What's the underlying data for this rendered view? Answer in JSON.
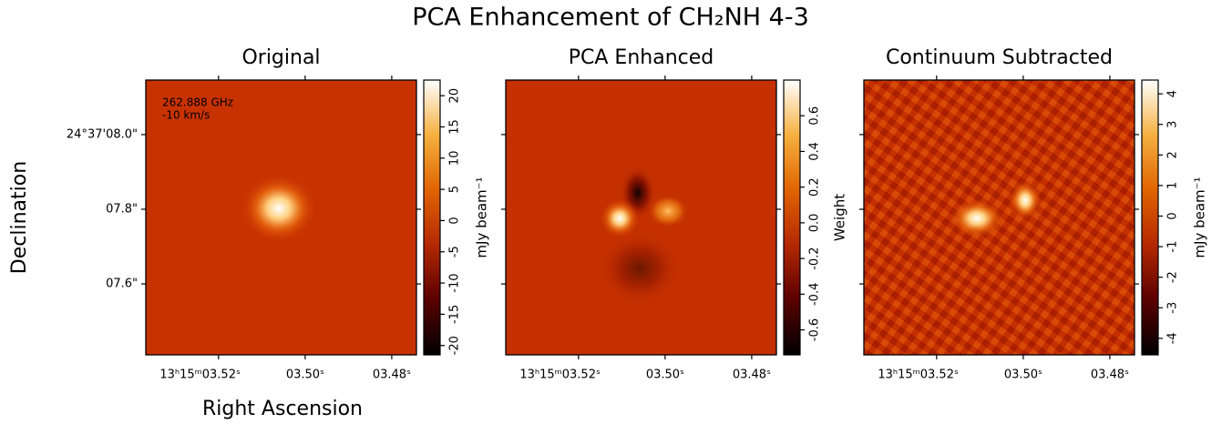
{
  "chart_data": {
    "type": "image",
    "title": "PCA Enhancement of CH₂NH 4-3",
    "xlabel": "Right Ascension",
    "ylabel": "Declination",
    "annotation": [
      "262.888 GHz",
      "-10 km/s"
    ],
    "xlim": [
      3.5368,
      3.4743
    ],
    "xticks": [
      {
        "value": 3.52,
        "label": "13ʰ15ᵐ03.52ˢ"
      },
      {
        "value": 3.5,
        "label": "03.50ˢ"
      },
      {
        "value": 3.48,
        "label": "03.48ˢ"
      }
    ],
    "ylim": [
      7.41,
      8.146
    ],
    "yticks": [
      {
        "value": 8.0,
        "label": "24°37'08.0\""
      },
      {
        "value": 7.8,
        "label": "07.8\""
      },
      {
        "value": 7.6,
        "label": "07.6\""
      }
    ],
    "colormap": [
      "#000000",
      "#5a0000",
      "#b42800",
      "#e06400",
      "#f5b040",
      "#ffffff"
    ],
    "panels": [
      {
        "title": "Original",
        "colorbar_label": "mJy beam⁻¹",
        "clim": [
          -21.5,
          22.5
        ],
        "cticks": [
          -20,
          -15,
          -10,
          -5,
          0,
          5,
          10,
          15,
          20
        ]
      },
      {
        "title": "PCA Enhanced",
        "colorbar_label": "Weight",
        "clim": [
          -0.74,
          0.8
        ],
        "cticks": [
          -0.6,
          -0.4,
          -0.2,
          {
            "value": 0,
            "label": "0.0"
          },
          0.2,
          0.4,
          0.6
        ]
      },
      {
        "title": "Continuum Subtracted",
        "colorbar_label": "mJy beam⁻¹",
        "clim": [
          -4.54,
          4.45
        ],
        "cticks": [
          -4,
          -3,
          -2,
          -1,
          0,
          1,
          2,
          3,
          4
        ]
      }
    ]
  }
}
